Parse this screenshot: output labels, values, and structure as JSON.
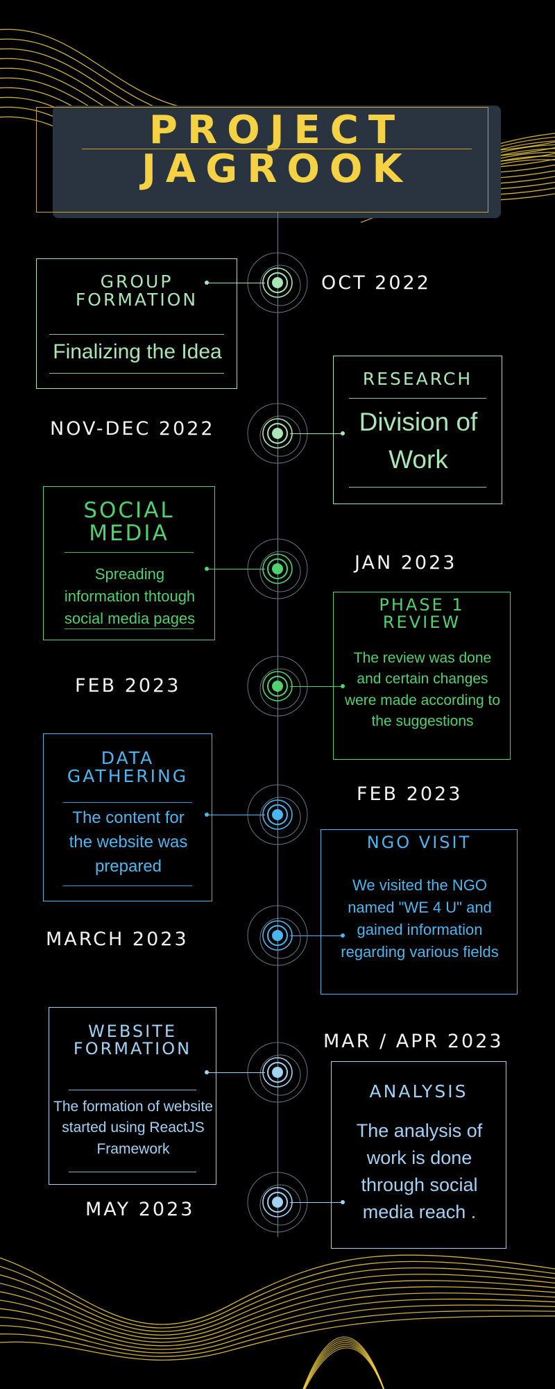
{
  "title": {
    "line1": "PROJECT",
    "line2": "JAGROOK"
  },
  "colors": {
    "gold": "#f5d243",
    "mint": "#a8e6b6",
    "green": "#4fd16e",
    "blue": "#4ab6f0",
    "lightblue": "#9fd2f5",
    "slate": "#2a3441"
  },
  "milestones": [
    {
      "date": "OCT 2022",
      "heading": "GROUP\nFORMATION",
      "body": "Finalizing the Idea",
      "side": "left"
    },
    {
      "date": "NOV-DEC 2022",
      "heading": "RESEARCH",
      "body": "Division of Work",
      "side": "right"
    },
    {
      "date": "JAN 2023",
      "heading": "SOCIAL\nMEDIA",
      "body": "Spreading information thtough social media pages",
      "side": "left"
    },
    {
      "date": "FEB 2023",
      "heading": "PHASE 1\nREVIEW",
      "body": "The review was done and certain changes were made according to the suggestions",
      "side": "right"
    },
    {
      "date": "FEB 2023",
      "heading": "DATA\nGATHERING",
      "body": "The content for the website was prepared",
      "side": "left"
    },
    {
      "date": "MARCH 2023",
      "heading": "NGO VISIT",
      "body": "We visited the NGO named \"WE 4 U\" and gained information regarding various fields",
      "side": "right"
    },
    {
      "date": "MAR / APR 2023",
      "heading": "WEBSITE\nFORMATION",
      "body": "The formation of website started using ReactJS Framework",
      "side": "left"
    },
    {
      "date": "MAY 2023",
      "heading": "ANALYSIS",
      "body": "The analysis of work is done through social media reach .",
      "side": "right"
    }
  ]
}
